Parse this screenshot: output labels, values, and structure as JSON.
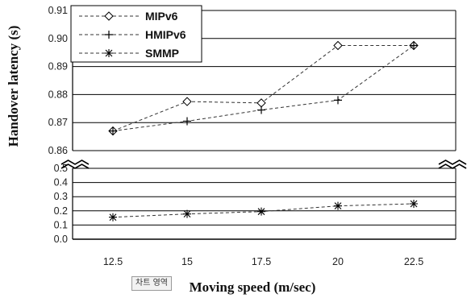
{
  "chart_data": {
    "type": "line",
    "xlabel": "Moving speed (m/sec)",
    "ylabel": "Handover latency (s)",
    "categories": [
      "12.5",
      "15",
      "17.5",
      "20",
      "22.5"
    ],
    "upper_panel": {
      "ylim": [
        0.86,
        0.91
      ],
      "yticks": [
        "0.86",
        "0.87",
        "0.88",
        "0.89",
        "0.90",
        "0.91"
      ]
    },
    "lower_panel": {
      "ylim": [
        0.0,
        0.5
      ],
      "yticks": [
        "0.0",
        "0.1",
        "0.2",
        "0.3",
        "0.4",
        "0.5"
      ]
    },
    "series": [
      {
        "name": "MIPv6",
        "marker": "diamond",
        "panel": "upper",
        "values": [
          0.867,
          0.8775,
          0.877,
          0.8975,
          0.8975
        ]
      },
      {
        "name": "HMIPv6",
        "marker": "plus",
        "panel": "upper",
        "values": [
          0.867,
          0.8705,
          0.8745,
          0.878,
          0.8975
        ]
      },
      {
        "name": "SMMP",
        "marker": "asterisk",
        "panel": "lower",
        "values": [
          0.155,
          0.178,
          0.195,
          0.235,
          0.25
        ]
      }
    ],
    "grid": true,
    "legend_position": "top-left",
    "axis_break": true
  },
  "tooltip": {
    "label": "차트 영역"
  }
}
